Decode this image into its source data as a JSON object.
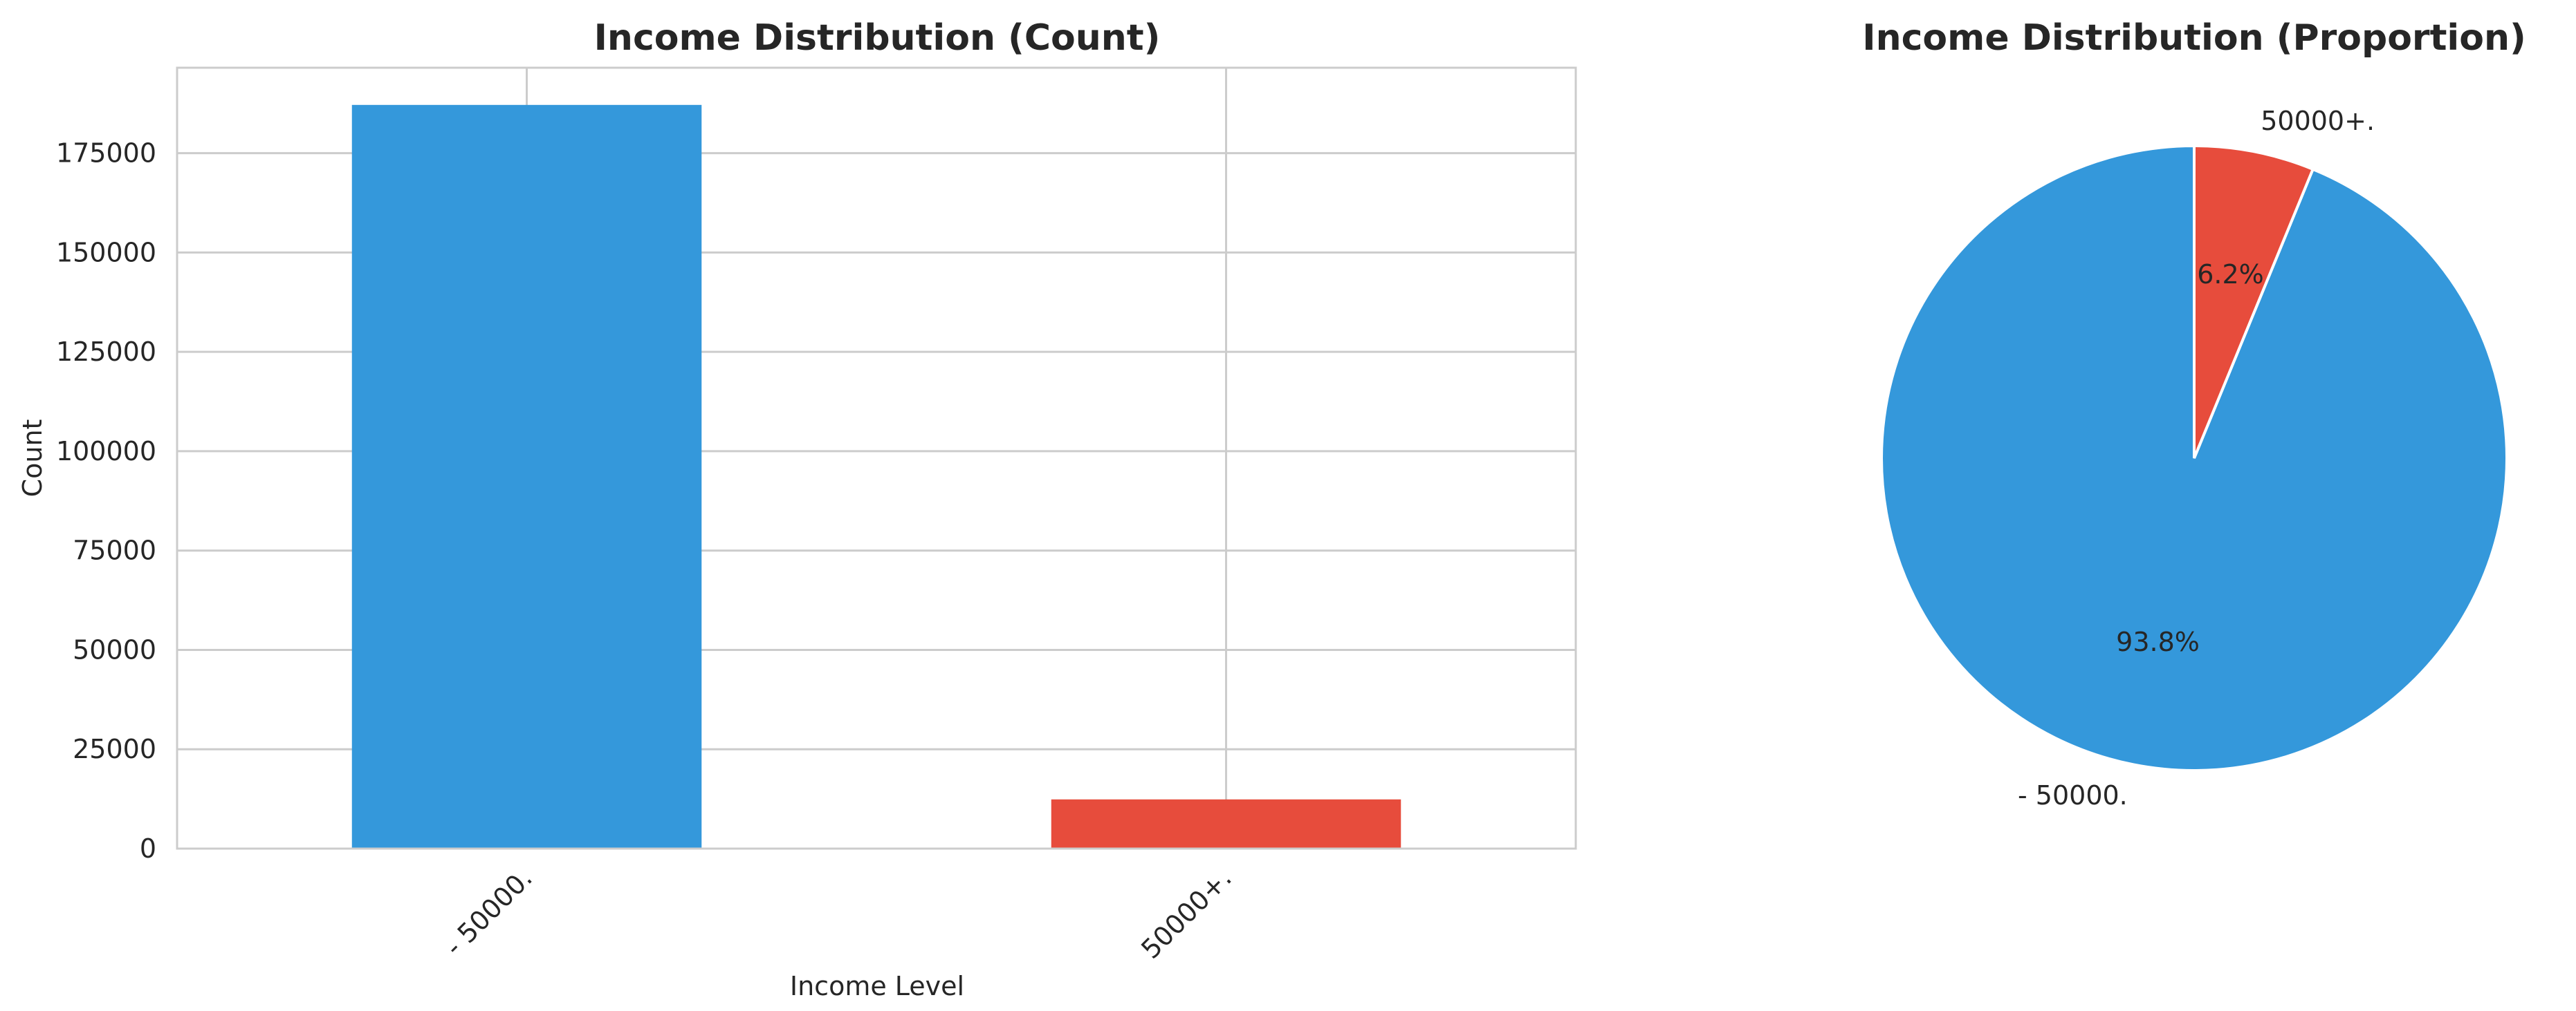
{
  "chart_data": [
    {
      "type": "bar",
      "title": "Income Distribution (Count)",
      "xlabel": "Income Level",
      "ylabel": "Count",
      "categories": [
        "- 50000.",
        "50000+."
      ],
      "values": [
        187141,
        12382
      ],
      "colors": [
        "#3498db",
        "#e74c3c"
      ],
      "ylim": [
        0,
        196500
      ],
      "yticks": [
        0,
        25000,
        50000,
        75000,
        100000,
        125000,
        150000,
        175000
      ],
      "ytick_labels": [
        "0",
        "25000",
        "50000",
        "75000",
        "100000",
        "125000",
        "150000",
        "175000"
      ],
      "grid": true,
      "xtick_rotation": 45
    },
    {
      "type": "pie",
      "title": "Income Distribution (Proportion)",
      "labels": [
        "- 50000.",
        "50000+."
      ],
      "values": [
        93.8,
        6.2
      ],
      "pct_labels": [
        "93.8%",
        "6.2%"
      ],
      "colors": [
        "#3498db",
        "#e74c3c"
      ],
      "start_angle": 90
    }
  ]
}
